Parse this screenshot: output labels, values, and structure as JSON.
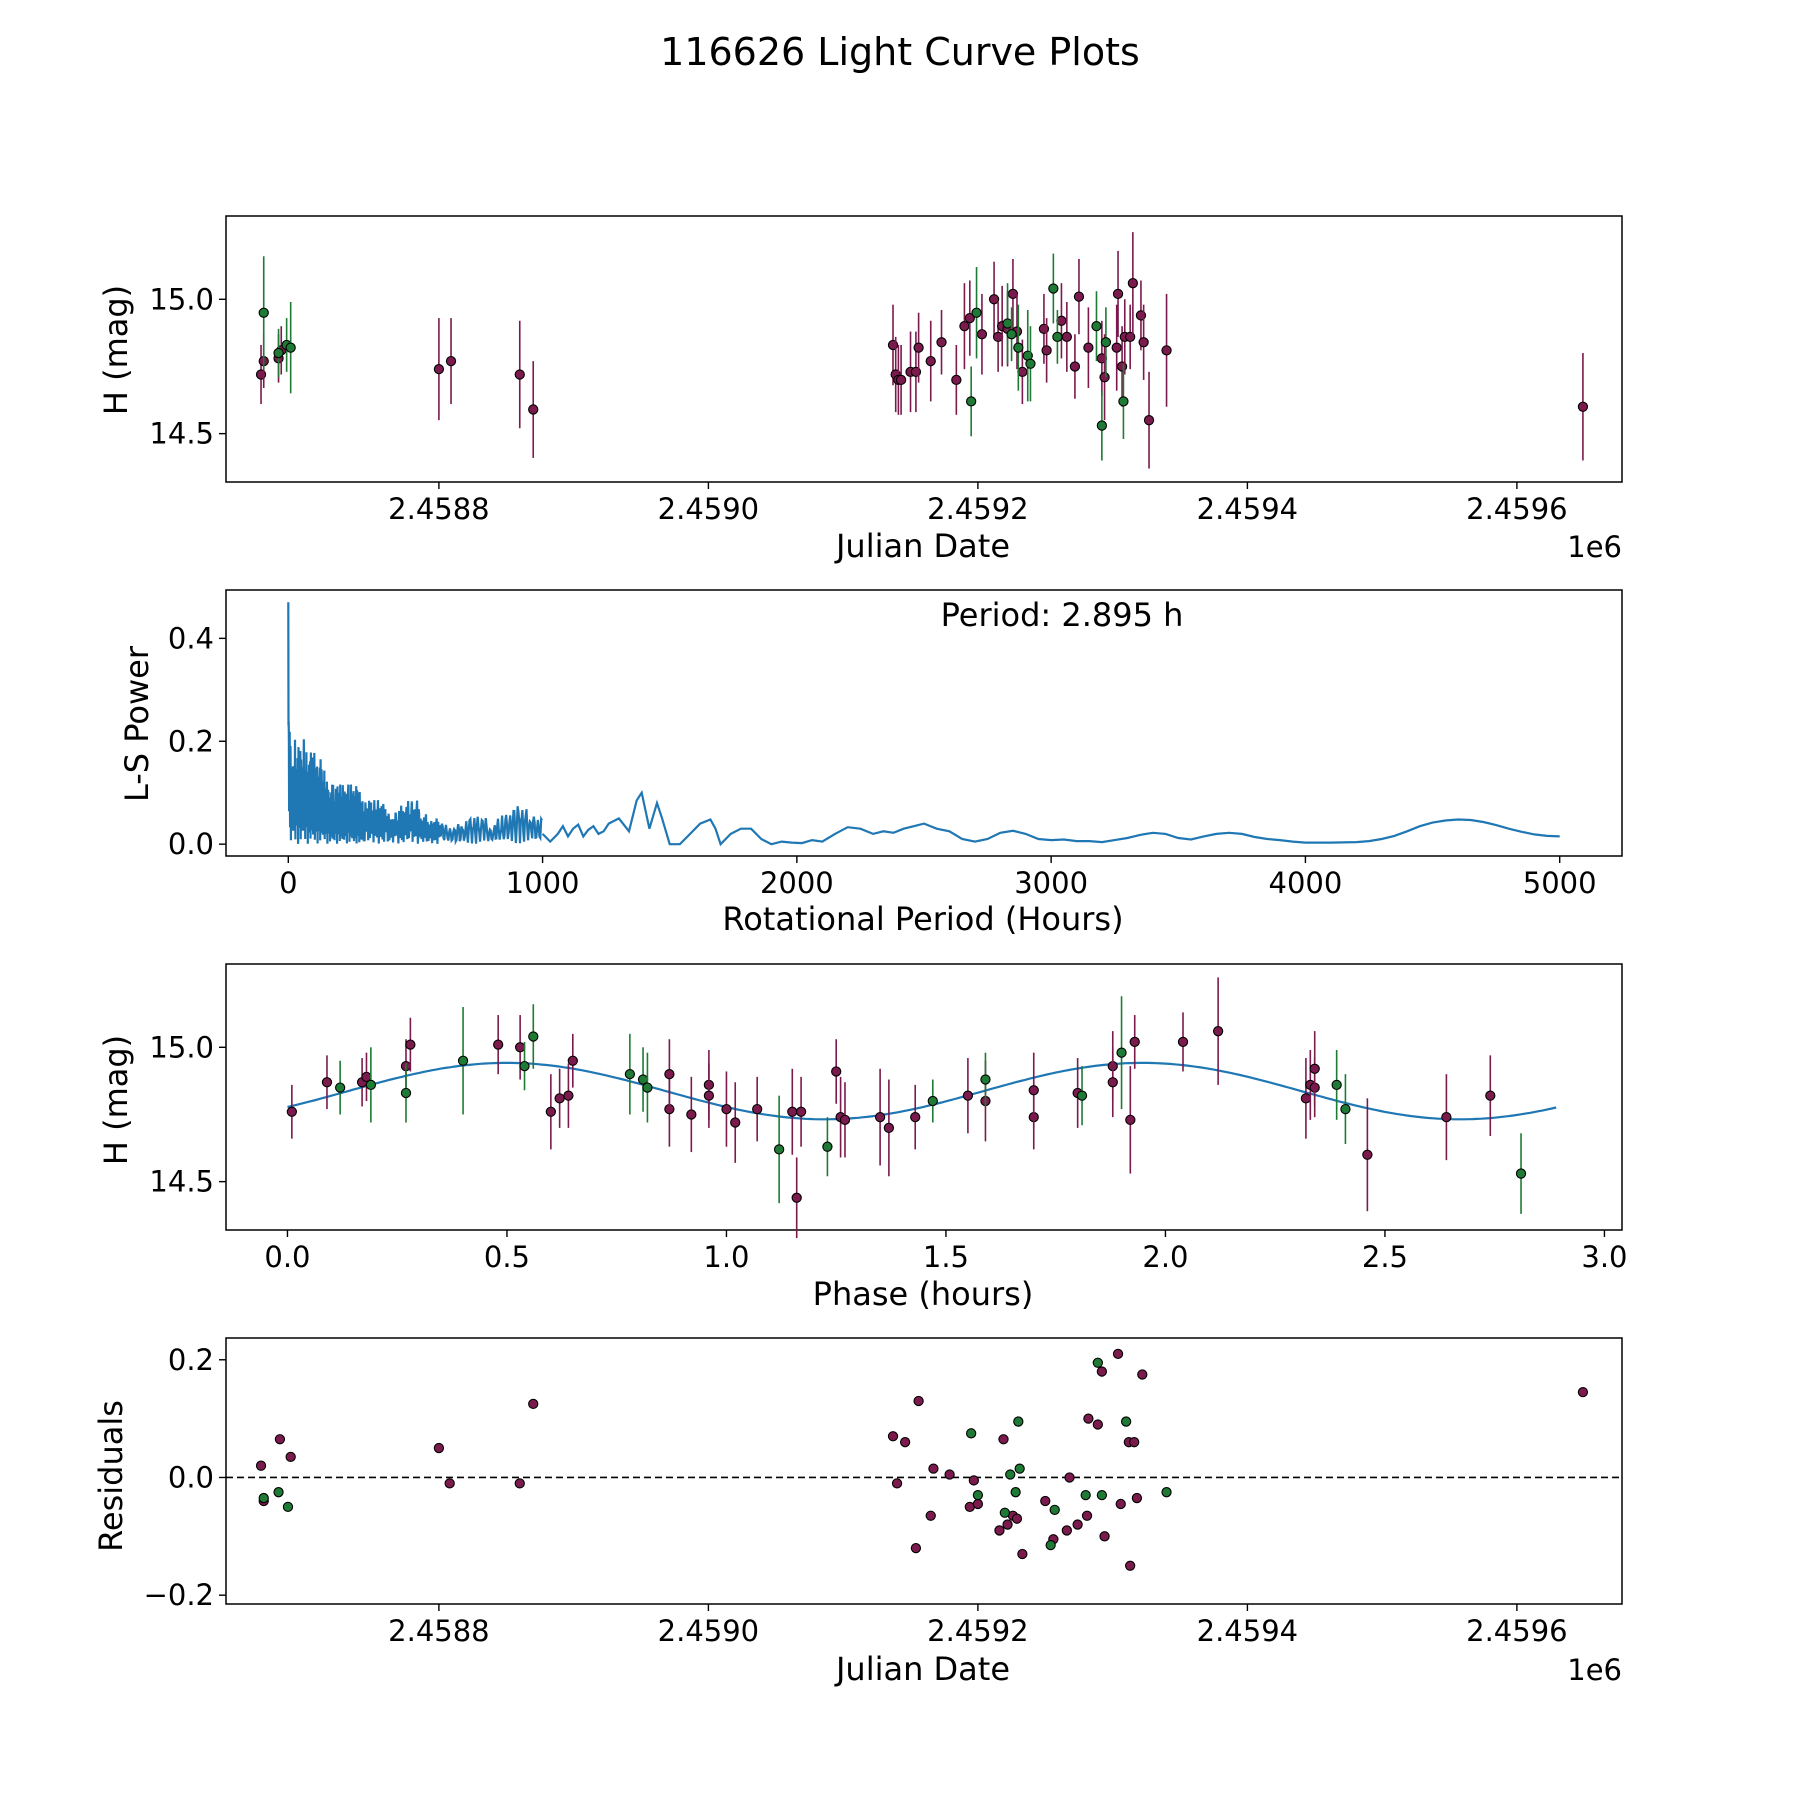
{
  "figure": {
    "title": "116626 Light Curve Plots"
  },
  "chart_data": [
    {
      "type": "scatter",
      "name": "light-curve",
      "xlabel": "Julian Date",
      "ylabel": "H (mag)",
      "xlim": [
        2458642,
        2459678
      ],
      "ylim": [
        14.32,
        15.31
      ],
      "xticks": [
        2458800,
        2459000,
        2459200,
        2459400,
        2459600
      ],
      "xtick_labels": [
        "2.4588",
        "2.4590",
        "2.4592",
        "2.4594",
        "2.4596"
      ],
      "yticks": [
        14.5,
        15.0
      ],
      "ytick_labels": [
        "14.5",
        "15.0"
      ],
      "offset_text": "1e6",
      "colors": {
        "purple": "#7a1a4d",
        "green": "#1e7a34"
      },
      "series": [
        {
          "name": "purple",
          "color": "#7a1a4d",
          "x": [
            2458668,
            2458670,
            2458681,
            2458683,
            2458800,
            2458809,
            2458860,
            2458870,
            2459137,
            2459139,
            2459141,
            2459143,
            2459150,
            2459154,
            2459156,
            2459165,
            2459173,
            2459184,
            2459190,
            2459194,
            2459203,
            2459212,
            2459215,
            2459218,
            2459222,
            2459226,
            2459229,
            2459233,
            2459249,
            2459251,
            2459262,
            2459266,
            2459272,
            2459275,
            2459282,
            2459292,
            2459294,
            2459303,
            2459304,
            2459307,
            2459309,
            2459313,
            2459315,
            2459321,
            2459323,
            2459327,
            2459340,
            2459649
          ],
          "y": [
            14.72,
            14.77,
            14.78,
            14.81,
            14.74,
            14.77,
            14.72,
            14.59,
            14.83,
            14.72,
            14.7,
            14.7,
            14.73,
            14.73,
            14.82,
            14.77,
            14.84,
            14.7,
            14.9,
            14.93,
            14.87,
            15.0,
            14.86,
            14.9,
            14.89,
            15.02,
            14.88,
            14.73,
            14.89,
            14.81,
            14.92,
            14.86,
            14.75,
            15.01,
            14.82,
            14.78,
            14.71,
            14.82,
            15.02,
            14.75,
            14.86,
            14.86,
            15.06,
            14.94,
            14.84,
            14.55,
            14.81,
            14.6
          ],
          "err": [
            0.11,
            0.1,
            0.09,
            0.09,
            0.19,
            0.16,
            0.2,
            0.18,
            0.15,
            0.14,
            0.13,
            0.13,
            0.15,
            0.15,
            0.13,
            0.15,
            0.12,
            0.13,
            0.16,
            0.14,
            0.15,
            0.14,
            0.13,
            0.15,
            0.14,
            0.13,
            0.14,
            0.12,
            0.13,
            0.12,
            0.14,
            0.13,
            0.12,
            0.14,
            0.15,
            0.14,
            0.16,
            0.16,
            0.16,
            0.15,
            0.14,
            0.12,
            0.19,
            0.13,
            0.14,
            0.18,
            0.21,
            0.2
          ]
        },
        {
          "name": "green",
          "color": "#1e7a34",
          "x": [
            2458670,
            2458681,
            2458687,
            2458690,
            2459195,
            2459199,
            2459222,
            2459225,
            2459230,
            2459237,
            2459239,
            2459256,
            2459259,
            2459288,
            2459292,
            2459295,
            2459308
          ],
          "y": [
            14.95,
            14.8,
            14.83,
            14.82,
            14.62,
            14.95,
            14.91,
            14.87,
            14.82,
            14.79,
            14.76,
            15.04,
            14.86,
            14.9,
            14.53,
            14.84,
            14.62
          ],
          "err": [
            0.21,
            0.09,
            0.1,
            0.17,
            0.13,
            0.17,
            0.15,
            0.1,
            0.16,
            0.17,
            0.14,
            0.13,
            0.1,
            0.13,
            0.13,
            0.13,
            0.14
          ]
        }
      ]
    },
    {
      "type": "line",
      "name": "periodogram",
      "xlabel": "Rotational Period (Hours)",
      "ylabel": "L-S Power",
      "xlim": [
        -245,
        5245
      ],
      "ylim": [
        -0.023,
        0.494
      ],
      "xticks": [
        0,
        1000,
        2000,
        3000,
        4000,
        5000
      ],
      "xtick_labels": [
        "0",
        "1000",
        "2000",
        "3000",
        "4000",
        "5000"
      ],
      "yticks": [
        0.0,
        0.2,
        0.4
      ],
      "ytick_labels": [
        "0.0",
        "0.2",
        "0.4"
      ],
      "annotation": "Period: 2.895 h",
      "line_color": "#1f77b4",
      "envelope": {
        "period": [
          0,
          5,
          10,
          30,
          60,
          80,
          100,
          150,
          200,
          250,
          300,
          350,
          400,
          450,
          500,
          520,
          560,
          600,
          640,
          700,
          760,
          800,
          860,
          900,
          940,
          980,
          1000
        ],
        "power": [
          0.47,
          0.25,
          0.2,
          0.21,
          0.22,
          0.17,
          0.23,
          0.13,
          0.12,
          0.13,
          0.09,
          0.1,
          0.07,
          0.08,
          0.1,
          0.06,
          0.06,
          0.05,
          0.03,
          0.05,
          0.07,
          0.04,
          0.07,
          0.08,
          0.08,
          0.05,
          0.07
        ]
      },
      "smooth": {
        "period": [
          1000,
          1030,
          1060,
          1080,
          1100,
          1120,
          1140,
          1160,
          1180,
          1200,
          1220,
          1240,
          1260,
          1300,
          1340,
          1370,
          1390,
          1420,
          1450,
          1470,
          1500,
          1540,
          1580,
          1620,
          1660,
          1680,
          1700,
          1740,
          1780,
          1820,
          1860,
          1900,
          1940,
          1980,
          2020,
          2060,
          2100,
          2150,
          2200,
          2250,
          2300,
          2340,
          2380,
          2420,
          2460,
          2500,
          2550,
          2600,
          2650,
          2700,
          2750,
          2800,
          2850,
          2900,
          2950,
          3000,
          3050,
          3100,
          3150,
          3200,
          3250,
          3300,
          3350,
          3400,
          3450,
          3500,
          3550,
          3600,
          3650,
          3700,
          3750,
          3800,
          3850,
          3900,
          3950,
          4000,
          4100,
          4200,
          4250,
          4300,
          4350,
          4400,
          4450,
          4500,
          4550,
          4600,
          4650,
          4700,
          4750,
          4800,
          4850,
          4900,
          4950,
          5000
        ],
        "power": [
          0.02,
          0.005,
          0.02,
          0.035,
          0.015,
          0.03,
          0.038,
          0.015,
          0.028,
          0.035,
          0.02,
          0.025,
          0.04,
          0.05,
          0.025,
          0.085,
          0.1,
          0.03,
          0.08,
          0.05,
          0.0,
          0.0,
          0.02,
          0.04,
          0.048,
          0.03,
          0.0,
          0.02,
          0.03,
          0.03,
          0.01,
          0.0,
          0.005,
          0.003,
          0.002,
          0.008,
          0.005,
          0.02,
          0.033,
          0.03,
          0.02,
          0.025,
          0.022,
          0.03,
          0.035,
          0.04,
          0.03,
          0.025,
          0.01,
          0.005,
          0.01,
          0.022,
          0.026,
          0.02,
          0.01,
          0.008,
          0.009,
          0.006,
          0.006,
          0.004,
          0.008,
          0.012,
          0.018,
          0.022,
          0.02,
          0.012,
          0.009,
          0.015,
          0.02,
          0.022,
          0.02,
          0.014,
          0.01,
          0.008,
          0.005,
          0.003,
          0.003,
          0.004,
          0.006,
          0.01,
          0.016,
          0.025,
          0.035,
          0.042,
          0.046,
          0.048,
          0.047,
          0.043,
          0.037,
          0.03,
          0.024,
          0.019,
          0.016,
          0.015
        ]
      }
    },
    {
      "type": "scatter",
      "name": "phase-folded",
      "xlabel": "Phase (hours)",
      "ylabel": "H (mag)",
      "xlim": [
        -0.14,
        3.04
      ],
      "ylim": [
        14.32,
        15.31
      ],
      "xticks": [
        0.0,
        0.5,
        1.0,
        1.5,
        2.0,
        2.5,
        3.0
      ],
      "xtick_labels": [
        "0.0",
        "0.5",
        "1.0",
        "1.5",
        "2.0",
        "2.5",
        "3.0"
      ],
      "yticks": [
        14.5,
        15.0
      ],
      "ytick_labels": [
        "14.5",
        "15.0"
      ],
      "fit": {
        "period_h": 2.895,
        "mean": 14.837,
        "amplitude": 0.105,
        "peak_phase": 0.5,
        "color": "#1f77b4"
      },
      "series": [
        {
          "name": "purple",
          "color": "#7a1a4d",
          "x": [
            0.01,
            0.09,
            0.17,
            0.18,
            0.27,
            0.28,
            0.48,
            0.53,
            0.6,
            0.62,
            0.64,
            0.65,
            0.87,
            0.87,
            0.92,
            0.96,
            0.96,
            1.0,
            1.02,
            1.07,
            1.15,
            1.16,
            1.17,
            1.25,
            1.26,
            1.27,
            1.35,
            1.37,
            1.43,
            1.55,
            1.59,
            1.7,
            1.7,
            1.8,
            1.88,
            1.88,
            1.92,
            1.93,
            2.04,
            2.12,
            2.32,
            2.33,
            2.34,
            2.34,
            2.46,
            2.64,
            2.74
          ],
          "y": [
            14.76,
            14.87,
            14.87,
            14.89,
            14.93,
            15.01,
            15.01,
            15.0,
            14.76,
            14.81,
            14.82,
            14.95,
            14.77,
            14.9,
            14.75,
            14.86,
            14.82,
            14.77,
            14.72,
            14.77,
            14.76,
            14.44,
            14.76,
            14.91,
            14.74,
            14.73,
            14.74,
            14.7,
            14.74,
            14.82,
            14.8,
            14.74,
            14.84,
            14.83,
            14.93,
            14.87,
            14.73,
            15.02,
            15.02,
            15.06,
            14.81,
            14.86,
            14.85,
            14.92,
            14.6,
            14.74,
            14.82
          ],
          "err": [
            0.1,
            0.1,
            0.09,
            0.09,
            0.1,
            0.1,
            0.11,
            0.12,
            0.14,
            0.11,
            0.12,
            0.1,
            0.14,
            0.13,
            0.14,
            0.13,
            0.12,
            0.14,
            0.15,
            0.12,
            0.16,
            0.15,
            0.13,
            0.12,
            0.15,
            0.14,
            0.18,
            0.18,
            0.12,
            0.14,
            0.15,
            0.12,
            0.14,
            0.13,
            0.13,
            0.13,
            0.2,
            0.1,
            0.11,
            0.2,
            0.15,
            0.13,
            0.11,
            0.14,
            0.21,
            0.16,
            0.15
          ]
        },
        {
          "name": "green",
          "color": "#1e7a34",
          "x": [
            0.12,
            0.19,
            0.27,
            0.4,
            0.54,
            0.56,
            0.78,
            0.81,
            0.82,
            1.12,
            1.23,
            1.47,
            1.59,
            1.81,
            1.9,
            2.39,
            2.41,
            2.81
          ],
          "y": [
            14.85,
            14.86,
            14.83,
            14.95,
            14.93,
            15.04,
            14.9,
            14.88,
            14.85,
            14.62,
            14.63,
            14.8,
            14.88,
            14.82,
            14.98,
            14.86,
            14.77,
            14.53
          ],
          "err": [
            0.1,
            0.14,
            0.11,
            0.2,
            0.09,
            0.12,
            0.15,
            0.12,
            0.13,
            0.2,
            0.11,
            0.08,
            0.1,
            0.11,
            0.21,
            0.13,
            0.13,
            0.15
          ]
        }
      ]
    },
    {
      "type": "scatter",
      "name": "residuals",
      "xlabel": "Julian Date",
      "ylabel": "Residuals",
      "xlim": [
        2458642,
        2459678
      ],
      "ylim": [
        -0.215,
        0.237
      ],
      "xticks": [
        2458800,
        2459000,
        2459200,
        2459400,
        2459600
      ],
      "xtick_labels": [
        "2.4588",
        "2.4590",
        "2.4592",
        "2.4594",
        "2.4596"
      ],
      "yticks": [
        -0.2,
        0.0,
        0.2
      ],
      "ytick_labels": [
        "−0.2",
        "0.0",
        "0.2"
      ],
      "offset_text": "1e6",
      "zero_line": {
        "y": 0.0,
        "style": "dashed"
      },
      "series": [
        {
          "name": "purple",
          "color": "#7a1a4d",
          "x": [
            2458668,
            2458670,
            2458682,
            2458690,
            2458800,
            2458808,
            2458860,
            2458870,
            2459137,
            2459140,
            2459146,
            2459154,
            2459156,
            2459165,
            2459167,
            2459179,
            2459194,
            2459197,
            2459200,
            2459216,
            2459219,
            2459222,
            2459226,
            2459229,
            2459233,
            2459250,
            2459256,
            2459266,
            2459268,
            2459274,
            2459281,
            2459282,
            2459289,
            2459292,
            2459294,
            2459304,
            2459306,
            2459312,
            2459313,
            2459316,
            2459318,
            2459322,
            2459649
          ],
          "y": [
            0.02,
            -0.04,
            0.065,
            0.035,
            0.05,
            -0.01,
            -0.01,
            0.125,
            0.07,
            -0.01,
            0.06,
            -0.12,
            0.13,
            -0.065,
            0.015,
            0.005,
            -0.05,
            -0.005,
            -0.045,
            -0.09,
            0.065,
            -0.08,
            -0.065,
            -0.07,
            -0.13,
            -0.04,
            -0.105,
            -0.09,
            0.0,
            -0.08,
            -0.065,
            0.1,
            0.09,
            0.18,
            -0.1,
            0.21,
            -0.045,
            0.06,
            -0.15,
            0.06,
            -0.035,
            0.175,
            0.145
          ],
          "err": []
        },
        {
          "name": "green",
          "color": "#1e7a34",
          "x": [
            2458670,
            2458681,
            2458688,
            2459195,
            2459200,
            2459220,
            2459224,
            2459228,
            2459230,
            2459231,
            2459254,
            2459257,
            2459280,
            2459289,
            2459292,
            2459310,
            2459340
          ],
          "y": [
            -0.035,
            -0.025,
            -0.05,
            0.075,
            -0.03,
            -0.06,
            0.005,
            -0.025,
            0.095,
            0.015,
            -0.115,
            -0.055,
            -0.03,
            0.195,
            -0.03,
            0.095,
            -0.025
          ],
          "err": []
        }
      ]
    }
  ]
}
